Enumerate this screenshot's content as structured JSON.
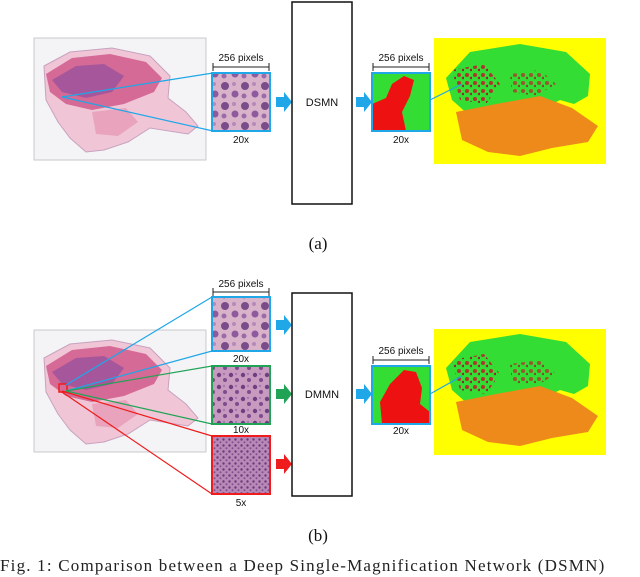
{
  "panel_a": {
    "patch_size_label": "256 pixels",
    "mag_label": "20x",
    "network_label": "DSMN",
    "output_size_label": "256 pixels",
    "output_mag_label": "20x",
    "panel_label": "(a)"
  },
  "panel_b": {
    "patch_size_label": "256 pixels",
    "mag_labels": [
      "20x",
      "10x",
      "5x"
    ],
    "network_label": "DMMN",
    "output_size_label": "256 pixels",
    "output_mag_label": "20x",
    "panel_label": "(b)"
  },
  "caption": "Fig. 1: Comparison between a Deep Single-Magnification Network (DSMN)",
  "colors": {
    "arrow_blue": "#1fa7e8",
    "arrow_green": "#21a356",
    "arrow_red": "#ee1c1c",
    "seg_yellow": "#ffff00",
    "seg_green": "#33dd33",
    "seg_orange": "#ee8a1a",
    "seg_red": "#ee1111"
  }
}
